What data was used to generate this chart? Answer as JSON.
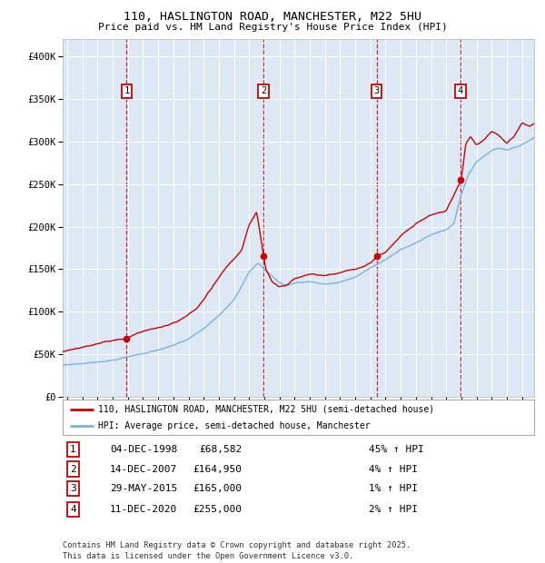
{
  "title": "110, HASLINGTON ROAD, MANCHESTER, M22 5HU",
  "subtitle": "Price paid vs. HM Land Registry's House Price Index (HPI)",
  "hpi_color": "#7ab4d8",
  "price_color": "#cc0000",
  "bg_color": "#dce9f5",
  "plot_bg": "#ffffff",
  "ylim": [
    0,
    420000
  ],
  "yticks": [
    0,
    50000,
    100000,
    150000,
    200000,
    250000,
    300000,
    350000,
    400000
  ],
  "ytick_labels": [
    "£0",
    "£50K",
    "£100K",
    "£150K",
    "£200K",
    "£250K",
    "£300K",
    "£350K",
    "£400K"
  ],
  "xlim_start": 1994.7,
  "xlim_end": 2025.8,
  "xticks": [
    1995,
    1996,
    1997,
    1998,
    1999,
    2000,
    2001,
    2002,
    2003,
    2004,
    2005,
    2006,
    2007,
    2008,
    2009,
    2010,
    2011,
    2012,
    2013,
    2014,
    2015,
    2016,
    2017,
    2018,
    2019,
    2020,
    2021,
    2022,
    2023,
    2024,
    2025
  ],
  "sale_dates": [
    1998.92,
    2007.95,
    2015.41,
    2020.94
  ],
  "sale_prices": [
    68582,
    164950,
    165000,
    255000
  ],
  "sale_labels": [
    "1",
    "2",
    "3",
    "4"
  ],
  "legend_line1": "110, HASLINGTON ROAD, MANCHESTER, M22 5HU (semi-detached house)",
  "legend_line2": "HPI: Average price, semi-detached house, Manchester",
  "table_data": [
    [
      "1",
      "04-DEC-1998",
      "£68,582",
      "45% ↑ HPI"
    ],
    [
      "2",
      "14-DEC-2007",
      "£164,950",
      "4% ↑ HPI"
    ],
    [
      "3",
      "29-MAY-2015",
      "£165,000",
      "1% ↑ HPI"
    ],
    [
      "4",
      "11-DEC-2020",
      "£255,000",
      "2% ↑ HPI"
    ]
  ],
  "footer": "Contains HM Land Registry data © Crown copyright and database right 2025.\nThis data is licensed under the Open Government Licence v3.0."
}
